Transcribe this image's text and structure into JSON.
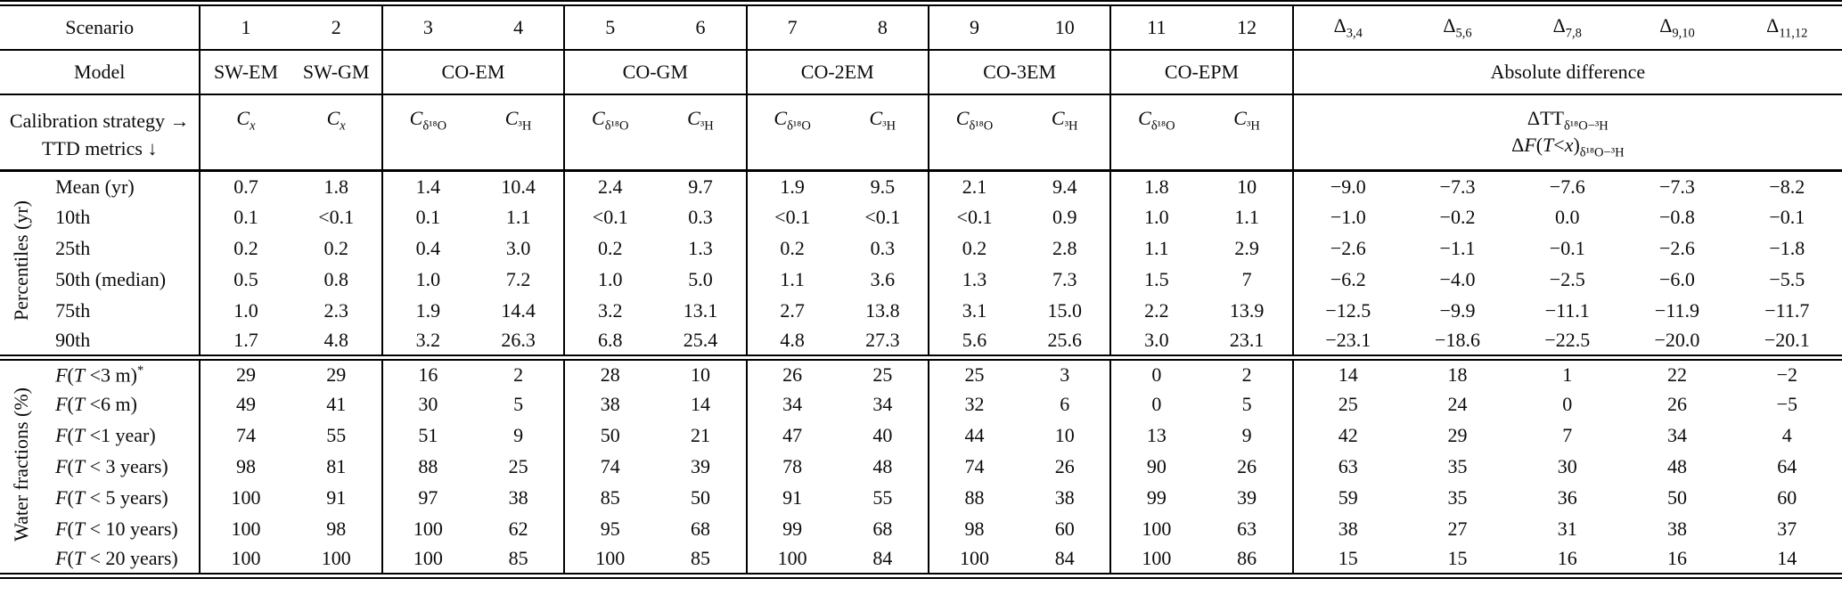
{
  "page": {
    "background": "#ffffff",
    "text_color": "#0c0c0c"
  },
  "table": {
    "header": {
      "scenario_label": "Scenario",
      "scenario_numbers": [
        "1",
        "2",
        "3",
        "4",
        "5",
        "6",
        "7",
        "8",
        "9",
        "10",
        "11",
        "12"
      ],
      "delta_labels_html": [
        "Δ<sub>3,4</sub>",
        "Δ<sub>5,6</sub>",
        "Δ<sub>7,8</sub>",
        "Δ<sub>9,10</sub>",
        "Δ<sub>11,12</sub>"
      ],
      "model_label": "Model",
      "models": [
        {
          "name": "SW-EM",
          "span": 1
        },
        {
          "name": "SW-GM",
          "span": 1
        },
        {
          "name": "CO-EM",
          "span": 2
        },
        {
          "name": "CO-GM",
          "span": 2
        },
        {
          "name": "CO-2EM",
          "span": 2
        },
        {
          "name": "CO-3EM",
          "span": 2
        },
        {
          "name": "CO-EPM",
          "span": 2
        }
      ],
      "absolute_difference_label": "Absolute difference",
      "calibration_line1": "Calibration strategy →",
      "calibration_line2": "TTD metrics ↓",
      "calibration_cols_html": [
        "<i>C</i><sub><i>x</i></sub>",
        "<i>C</i><sub><i>x</i></sub>",
        "<i>C</i><sub>δ¹⁸O</sub>",
        "<i>C</i><sub>³H</sub>",
        "<i>C</i><sub>δ¹⁸O</sub>",
        "<i>C</i><sub>³H</sub>",
        "<i>C</i><sub>δ¹⁸O</sub>",
        "<i>C</i><sub>³H</sub>",
        "<i>C</i><sub>δ¹⁸O</sub>",
        "<i>C</i><sub>³H</sub>",
        "<i>C</i><sub>δ¹⁸O</sub>",
        "<i>C</i><sub>³H</sub>"
      ],
      "delta_definition_html": "ΔTT<sub>δ¹⁸O−³H</sub><br>Δ<i>F</i>(<i>T</i>&lt;<i>x</i>)<sub>δ¹⁸O−³H</sub>"
    },
    "sections": [
      {
        "group_label": "Percentiles (yr)",
        "rows": [
          {
            "label_html": "Mean (yr)",
            "values": [
              "0.7",
              "1.8",
              "1.4",
              "10.4",
              "2.4",
              "9.7",
              "1.9",
              "9.5",
              "2.1",
              "9.4",
              "1.8",
              "10"
            ],
            "deltas": [
              "−9.0",
              "−7.3",
              "−7.6",
              "−7.3",
              "−8.2"
            ]
          },
          {
            "label_html": "10th",
            "values": [
              "0.1",
              "<0.1",
              "0.1",
              "1.1",
              "<0.1",
              "0.3",
              "<0.1",
              "<0.1",
              "<0.1",
              "0.9",
              "1.0",
              "1.1"
            ],
            "deltas": [
              "−1.0",
              "−0.2",
              "0.0",
              "−0.8",
              "−0.1"
            ]
          },
          {
            "label_html": "25th",
            "values": [
              "0.2",
              "0.2",
              "0.4",
              "3.0",
              "0.2",
              "1.3",
              "0.2",
              "0.3",
              "0.2",
              "2.8",
              "1.1",
              "2.9"
            ],
            "deltas": [
              "−2.6",
              "−1.1",
              "−0.1",
              "−2.6",
              "−1.8"
            ]
          },
          {
            "label_html": "50th (median)",
            "values": [
              "0.5",
              "0.8",
              "1.0",
              "7.2",
              "1.0",
              "5.0",
              "1.1",
              "3.6",
              "1.3",
              "7.3",
              "1.5",
              "7"
            ],
            "deltas": [
              "−6.2",
              "−4.0",
              "−2.5",
              "−6.0",
              "−5.5"
            ]
          },
          {
            "label_html": "75th",
            "values": [
              "1.0",
              "2.3",
              "1.9",
              "14.4",
              "3.2",
              "13.1",
              "2.7",
              "13.8",
              "3.1",
              "15.0",
              "2.2",
              "13.9"
            ],
            "deltas": [
              "−12.5",
              "−9.9",
              "−11.1",
              "−11.9",
              "−11.7"
            ]
          },
          {
            "label_html": "90th",
            "values": [
              "1.7",
              "4.8",
              "3.2",
              "26.3",
              "6.8",
              "25.4",
              "4.8",
              "27.3",
              "5.6",
              "25.6",
              "3.0",
              "23.1"
            ],
            "deltas": [
              "−23.1",
              "−18.6",
              "−22.5",
              "−20.0",
              "−20.1"
            ]
          }
        ]
      },
      {
        "group_label": "Water fractions (%)",
        "rows": [
          {
            "label_html": "<i>F</i>(<i>T</i> &lt;3 m)<sup>*</sup>",
            "values": [
              "29",
              "29",
              "16",
              "2",
              "28",
              "10",
              "26",
              "25",
              "25",
              "3",
              "0",
              "2"
            ],
            "deltas": [
              "14",
              "18",
              "1",
              "22",
              "−2"
            ]
          },
          {
            "label_html": "<i>F</i>(<i>T</i> &lt;6 m)",
            "values": [
              "49",
              "41",
              "30",
              "5",
              "38",
              "14",
              "34",
              "34",
              "32",
              "6",
              "0",
              "5"
            ],
            "deltas": [
              "25",
              "24",
              "0",
              "26",
              "−5"
            ]
          },
          {
            "label_html": "<i>F</i>(<i>T</i> &lt;1 year)",
            "values": [
              "74",
              "55",
              "51",
              "9",
              "50",
              "21",
              "47",
              "40",
              "44",
              "10",
              "13",
              "9"
            ],
            "deltas": [
              "42",
              "29",
              "7",
              "34",
              "4"
            ]
          },
          {
            "label_html": "<i>F</i>(<i>T</i> &lt; 3 years)",
            "values": [
              "98",
              "81",
              "88",
              "25",
              "74",
              "39",
              "78",
              "48",
              "74",
              "26",
              "90",
              "26"
            ],
            "deltas": [
              "63",
              "35",
              "30",
              "48",
              "64"
            ]
          },
          {
            "label_html": "<i>F</i>(<i>T</i> &lt; 5 years)",
            "values": [
              "100",
              "91",
              "97",
              "38",
              "85",
              "50",
              "91",
              "55",
              "88",
              "38",
              "99",
              "39"
            ],
            "deltas": [
              "59",
              "35",
              "36",
              "50",
              "60"
            ]
          },
          {
            "label_html": "<i>F</i>(<i>T</i> &lt; 10 years)",
            "values": [
              "100",
              "98",
              "100",
              "62",
              "95",
              "68",
              "99",
              "68",
              "98",
              "60",
              "100",
              "63"
            ],
            "deltas": [
              "38",
              "27",
              "31",
              "38",
              "37"
            ]
          },
          {
            "label_html": "<i>F</i>(<i>T</i> &lt; 20 years)",
            "values": [
              "100",
              "100",
              "100",
              "85",
              "100",
              "85",
              "100",
              "84",
              "100",
              "84",
              "100",
              "86"
            ],
            "deltas": [
              "15",
              "15",
              "16",
              "16",
              "14"
            ]
          }
        ]
      }
    ]
  }
}
